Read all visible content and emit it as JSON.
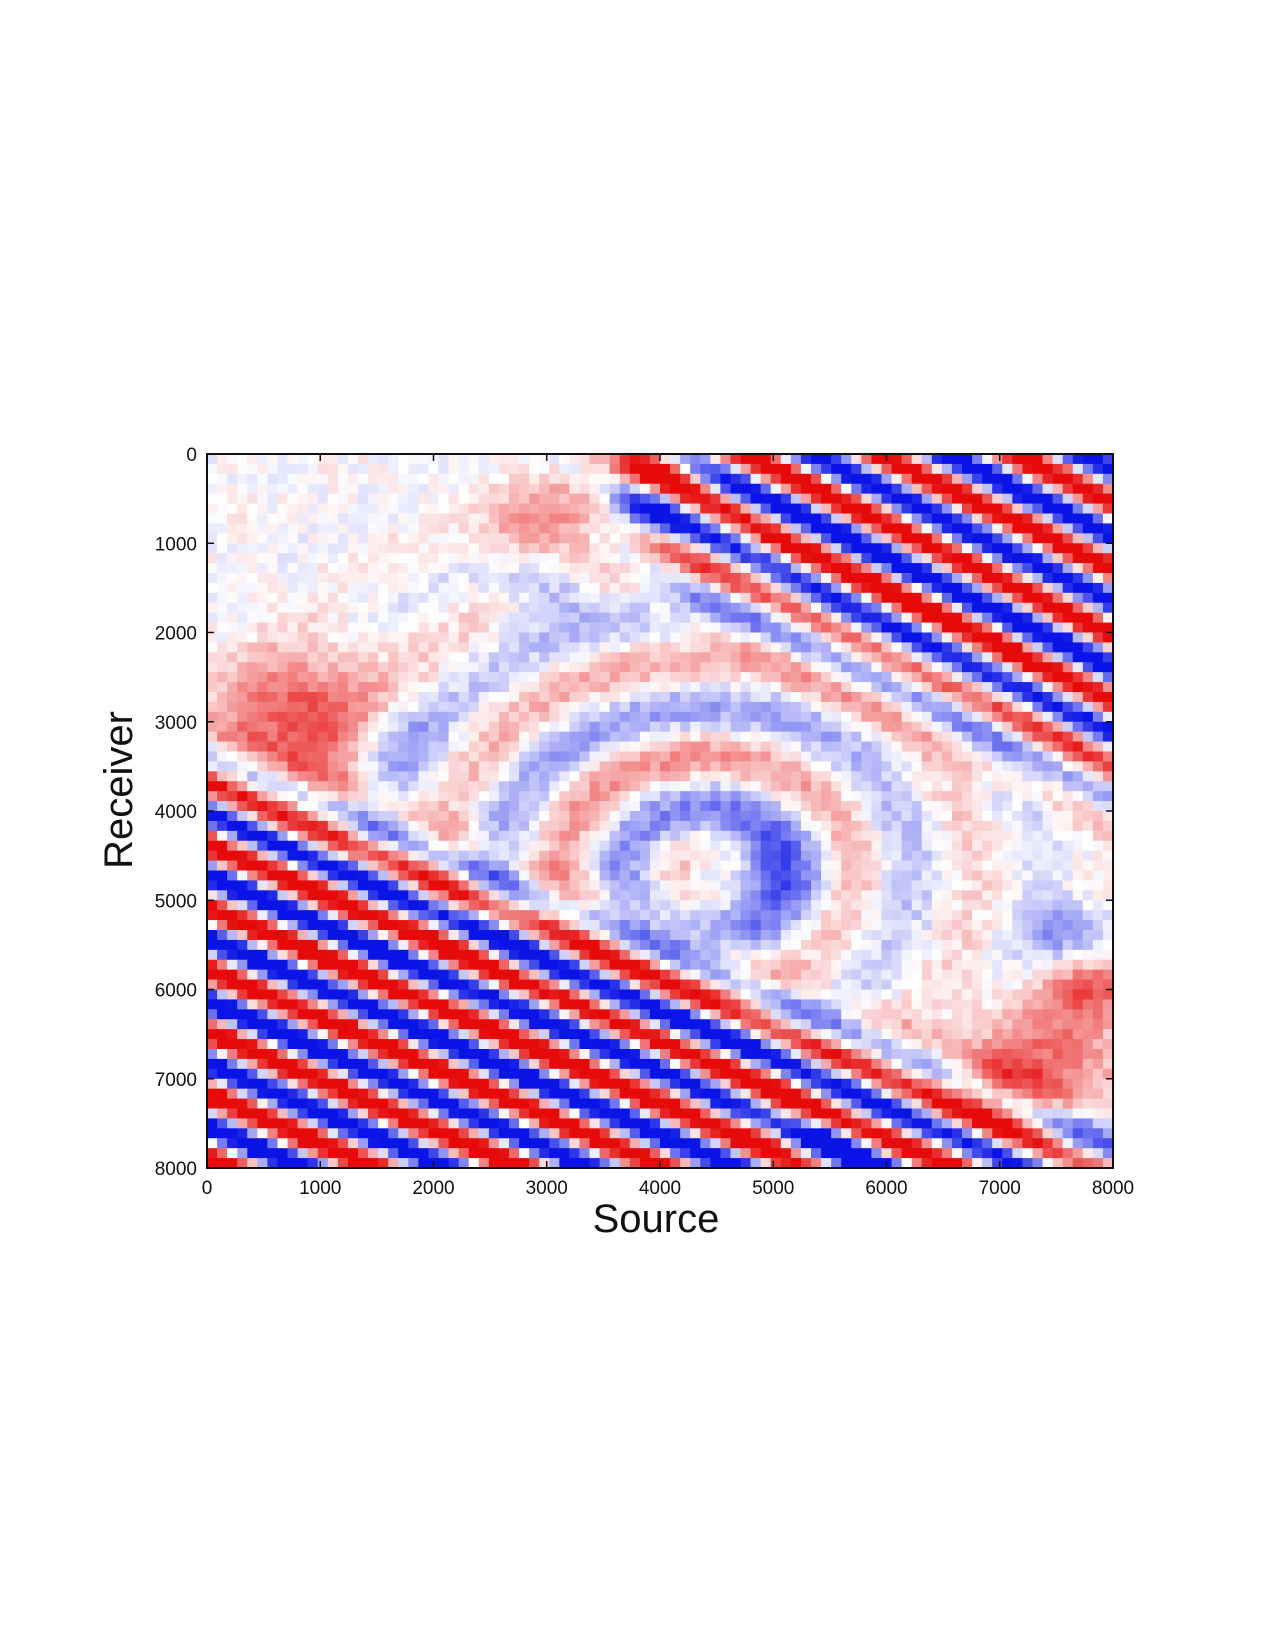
{
  "chart_data": {
    "type": "heatmap",
    "title": "",
    "xlabel": "Source",
    "ylabel": "Receiver",
    "xlim": [
      0,
      8000
    ],
    "ylim": [
      0,
      8000
    ],
    "y_axis_inverted": true,
    "xticks": [
      0,
      1000,
      2000,
      3000,
      4000,
      5000,
      6000,
      7000,
      8000
    ],
    "xtick_labels": [
      "0",
      "1000",
      "2000",
      "3000",
      "4000",
      "5000",
      "6000",
      "7000",
      "8000"
    ],
    "yticks": [
      0,
      1000,
      2000,
      3000,
      4000,
      5000,
      6000,
      7000,
      8000
    ],
    "ytick_labels": [
      "0",
      "1000",
      "2000",
      "3000",
      "4000",
      "5000",
      "6000",
      "7000",
      "8000"
    ],
    "colormap": "diverging blue-white-red",
    "colors": {
      "negative": "#0a14e6",
      "zero": "#ffffff",
      "positive": "#e60a0a"
    },
    "grid": false,
    "colorbar": false,
    "description_of_field": "Wavefield amplitude on a Source x Receiver grid: strong diagonal stripes (alternating red/blue) across the lower-left and upper-right, weaker arcs in the centre, with a white near-zero band near the diagonal."
  }
}
